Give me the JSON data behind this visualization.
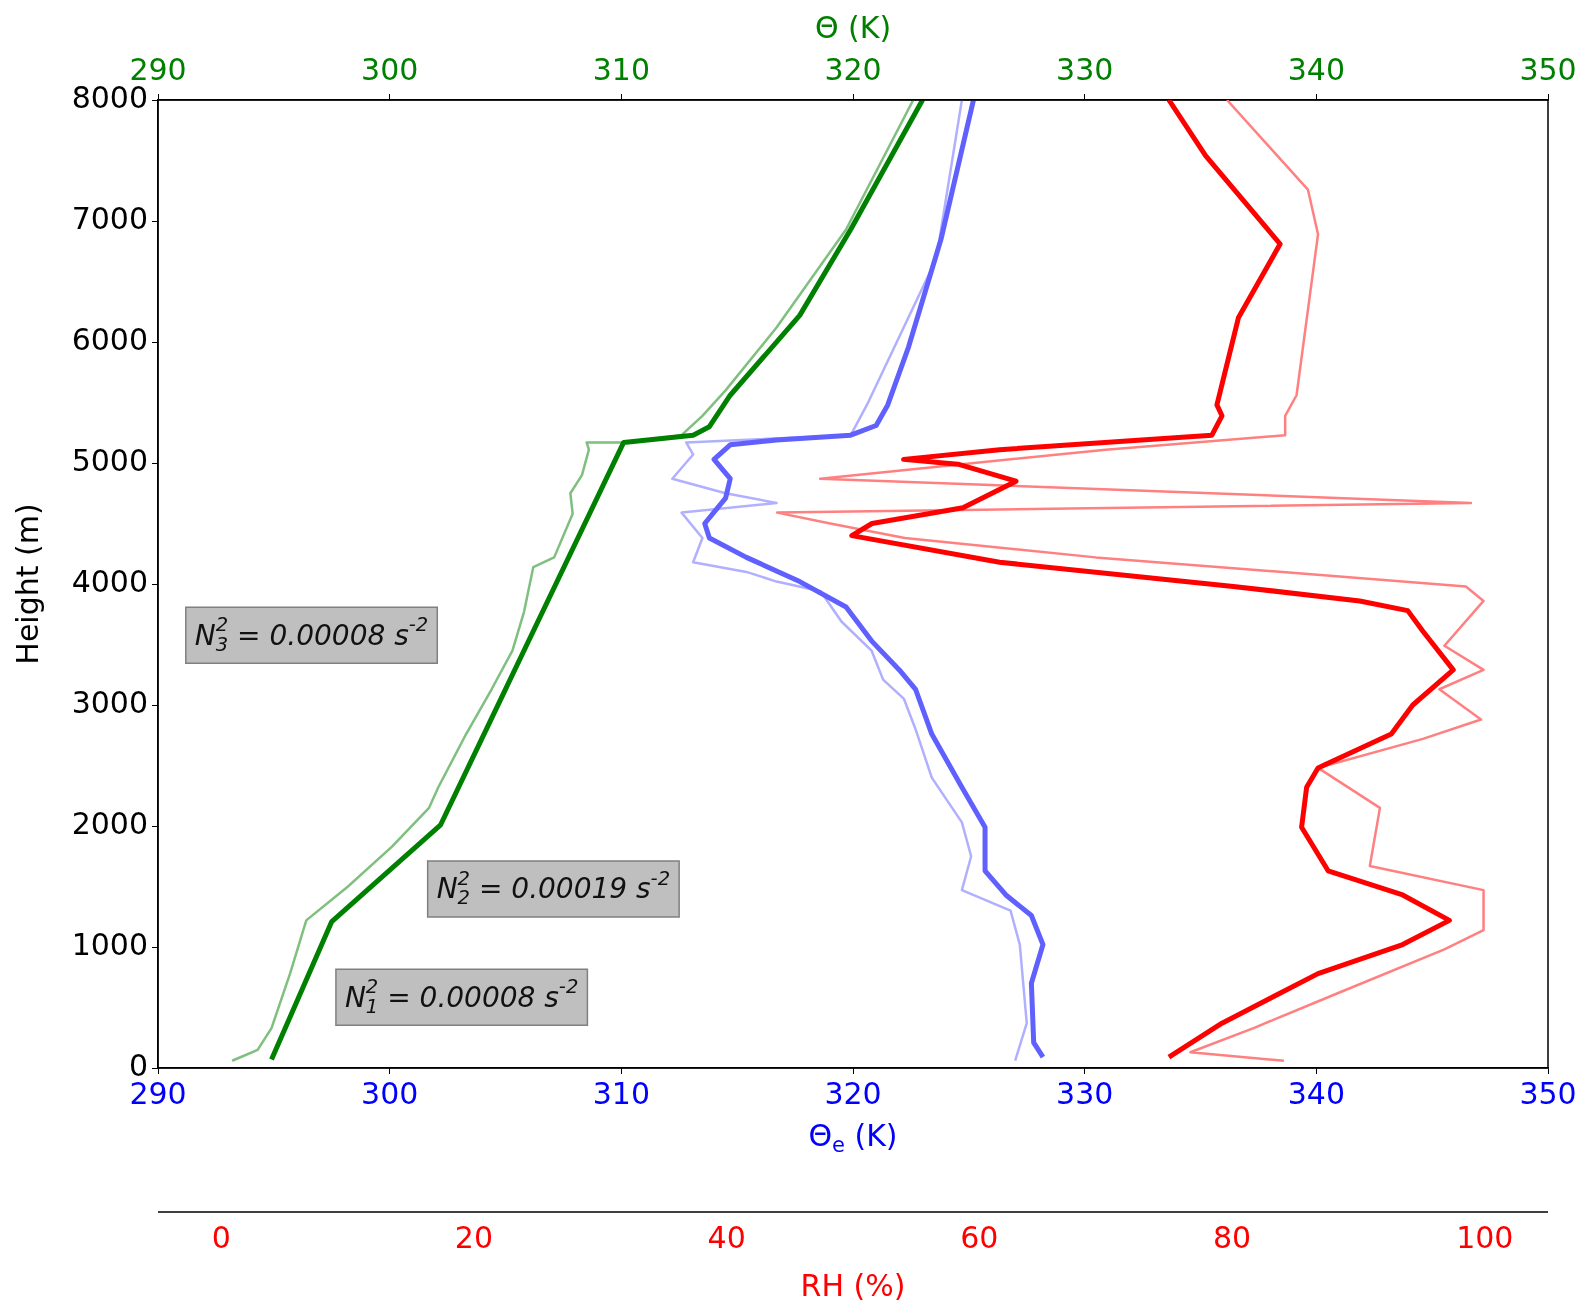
{
  "chart_data": [
    {
      "type": "line",
      "xlabel": "Θ$_{e}$ (K)",
      "x2label": "Θ (K)",
      "ylabel": "Height (m)",
      "xlim": [
        290,
        350
      ],
      "xticks": [
        290,
        300,
        310,
        320,
        330,
        340,
        350
      ],
      "x2lim": [
        290,
        350
      ],
      "x2ticks": [
        290,
        300,
        310,
        320,
        330,
        340,
        350
      ],
      "ylim": [
        0,
        8000
      ],
      "yticks": [
        0,
        1000,
        2000,
        3000,
        4000,
        5000,
        6000,
        7000,
        8000
      ],
      "grid": false,
      "legend": false,
      "marker": "none",
      "annotations": [
        "N$_{3}$$^{2}$ = 0.00008 s$^{-2}$",
        "N$_{2}$$^{2}$ = 0.00019 s$^{-2}$",
        "N$_{1}$$^{2}$ = 0.00008 s$^{-2}$"
      ],
      "series": [
        {
          "color": "#7fbf7f",
          "x": [
            293.2,
            294.3,
            294.9,
            295.7,
            296.4,
            298.2,
            300.1,
            301.7,
            302.1,
            303.3,
            304.4,
            305.3,
            305.8,
            306.2,
            307.1,
            307.9,
            307.8,
            308.3,
            308.6,
            308.5,
            310.1,
            312.6,
            313.5,
            314.5,
            316.7,
            319.7,
            322.6
          ],
          "values": [
            60,
            150,
            330,
            780,
            1220,
            1500,
            1830,
            2150,
            2320,
            2760,
            3130,
            3450,
            3770,
            4140,
            4220,
            4580,
            4750,
            4900,
            5110,
            5170,
            5170,
            5230,
            5390,
            5600,
            6120,
            6930,
            8000
          ]
        },
        {
          "color": "#008000",
          "x": [
            294.9,
            297.5,
            302.2,
            310.1,
            313.1,
            313.8,
            314.7,
            317.7,
            319.9,
            323.0
          ],
          "values": [
            70,
            1210,
            2010,
            5170,
            5230,
            5300,
            5560,
            6220,
            6930,
            8000
          ]
        },
        {
          "color": "#b0b0ff",
          "x": [
            327.0,
            327.5,
            327.2,
            326.8,
            324.7,
            325.1,
            324.7,
            323.4,
            322.7,
            322.2,
            321.3,
            320.8,
            319.5,
            318.6,
            316.7,
            315.4,
            313.1,
            313.5,
            312.6,
            316.7,
            314.5,
            312.2,
            313.1,
            312.8,
            319.9,
            320.6,
            323.6,
            324.7
          ],
          "values": [
            60,
            370,
            1020,
            1300,
            1470,
            1750,
            2030,
            2400,
            2800,
            3050,
            3210,
            3450,
            3690,
            3940,
            4020,
            4100,
            4180,
            4380,
            4590,
            4670,
            4750,
            4870,
            5070,
            5170,
            5230,
            5480,
            6690,
            8000
          ]
        },
        {
          "color": "#6060ff",
          "x": [
            328.2,
            327.8,
            327.7,
            328.2,
            327.7,
            326.6,
            325.7,
            325.7,
            324.7,
            323.4,
            322.7,
            322.0,
            320.8,
            319.7,
            317.7,
            315.4,
            313.8,
            313.6,
            314.5,
            314.7,
            314.0,
            314.7,
            316.7,
            319.9,
            321.0,
            321.5,
            322.4,
            323.8,
            325.2
          ],
          "values": [
            90,
            210,
            700,
            1020,
            1260,
            1430,
            1630,
            1990,
            2320,
            2760,
            3130,
            3290,
            3530,
            3810,
            4020,
            4220,
            4380,
            4500,
            4710,
            4870,
            5030,
            5150,
            5190,
            5230,
            5310,
            5480,
            5960,
            6850,
            8000
          ]
        }
      ]
    },
    {
      "type": "line",
      "xlabel": "RH (%)",
      "xlim": [
        -5,
        105
      ],
      "xticks": [
        0,
        20,
        40,
        60,
        80,
        100
      ],
      "ylim": [
        0,
        8000
      ],
      "tick_labels": "x",
      "grid": false,
      "legend": false,
      "marker": "none",
      "series": [
        {
          "color": "#ff8080",
          "x": [
            84.1,
            76.7,
            81.7,
            88.4,
            96.8,
            99.9,
            99.9,
            90.9,
            91.7,
            86.8,
            95.1,
            99.7,
            96.4,
            99.9,
            96.8,
            99.9,
            98.5,
            69.2,
            54.1,
            48.2,
            44.0,
            98.9,
            47.4,
            70.0,
            84.2,
            84.2,
            85.1,
            86.8,
            86.0,
            79.6
          ],
          "values": [
            60,
            130,
            330,
            620,
            980,
            1140,
            1470,
            1670,
            2150,
            2480,
            2720,
            2880,
            3130,
            3290,
            3490,
            3860,
            3980,
            4220,
            4380,
            4500,
            4590,
            4670,
            4870,
            5110,
            5230,
            5390,
            5560,
            6890,
            7260,
            8000
          ]
        },
        {
          "color": "#ff0000",
          "x": [
            75.0,
            79.2,
            86.8,
            93.5,
            97.2,
            93.5,
            87.6,
            85.5,
            85.9,
            86.8,
            92.6,
            94.3,
            97.5,
            95.1,
            93.9,
            90.1,
            80.1,
            61.6,
            49.9,
            51.5,
            58.7,
            62.9,
            58.3,
            54.0,
            61.6,
            78.4,
            79.2,
            78.8,
            80.5,
            83.8,
            77.9,
            75.0
          ],
          "values": [
            90,
            370,
            780,
            1020,
            1220,
            1430,
            1630,
            1990,
            2320,
            2480,
            2760,
            3000,
            3290,
            3610,
            3780,
            3860,
            3980,
            4180,
            4400,
            4500,
            4630,
            4850,
            4990,
            5030,
            5110,
            5230,
            5390,
            5480,
            6200,
            6810,
            7540,
            8000
          ]
        }
      ]
    }
  ]
}
